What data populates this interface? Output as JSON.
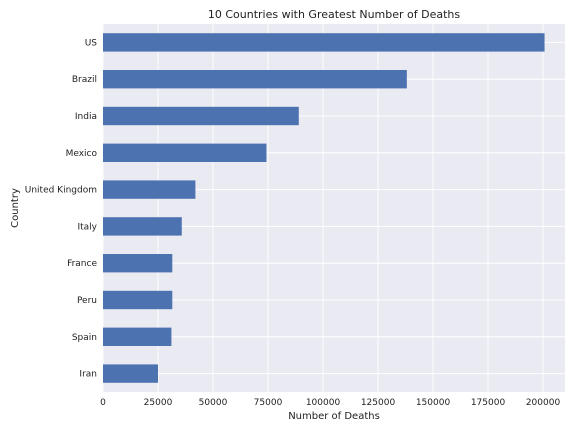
{
  "chart_data": {
    "type": "bar",
    "orientation": "horizontal",
    "title": "10 Countries with Greatest Number of Deaths",
    "xlabel": "Number of Deaths",
    "ylabel": "Country",
    "categories": [
      "US",
      "Brazil",
      "India",
      "Mexico",
      "United Kingdom",
      "Italy",
      "France",
      "Peru",
      "Spain",
      "Iran"
    ],
    "values": [
      200700,
      138100,
      89000,
      74300,
      42000,
      35800,
      31500,
      31500,
      31100,
      25000
    ],
    "xlim": [
      0,
      210000
    ],
    "xticks": [
      0,
      25000,
      50000,
      75000,
      100000,
      125000,
      150000,
      175000,
      200000
    ],
    "grid": true,
    "colors": {
      "bar": "#4c72b0",
      "plot_background": "#eaeaf2",
      "grid": "#ffffff"
    }
  }
}
